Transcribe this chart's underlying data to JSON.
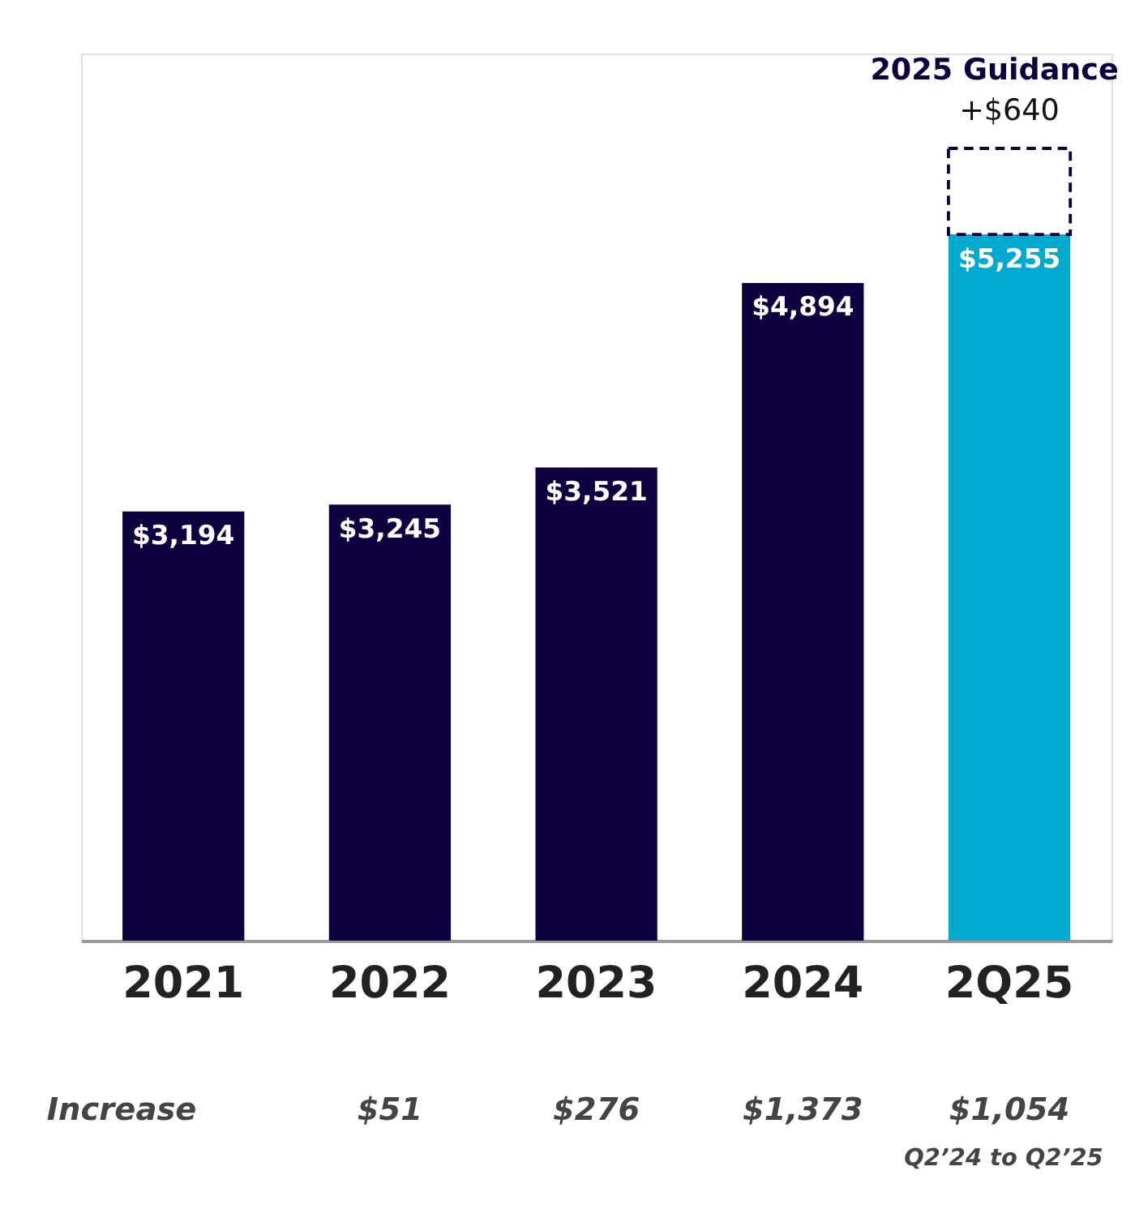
{
  "chart_data": {
    "type": "bar",
    "stacked": true,
    "categories": [
      "2021",
      "2022",
      "2023",
      "2024",
      "2Q25"
    ],
    "series": [
      {
        "colors": [
          "#0f0040",
          "#0f0040",
          "#0f0040",
          "#0f0040",
          "#00a9ce"
        ],
        "values": [
          3194,
          3245,
          3521,
          4894,
          5255
        ],
        "value_labels": [
          "$3,194",
          "$3,245",
          "$3,521",
          "$4,894",
          "$5,255"
        ]
      },
      {
        "name": "2025 Guidance",
        "color": "#0f0040",
        "line_style": "dashed",
        "values": [
          null,
          null,
          null,
          null,
          640
        ],
        "value_labels": [
          null,
          null,
          null,
          null,
          "+$640"
        ]
      }
    ],
    "ylim": [
      0,
      6600
    ],
    "annotations": [
      "Increase",
      "$51",
      "$276",
      "$1,373",
      "$1,054",
      "Q2’24 to Q2’25"
    ]
  }
}
